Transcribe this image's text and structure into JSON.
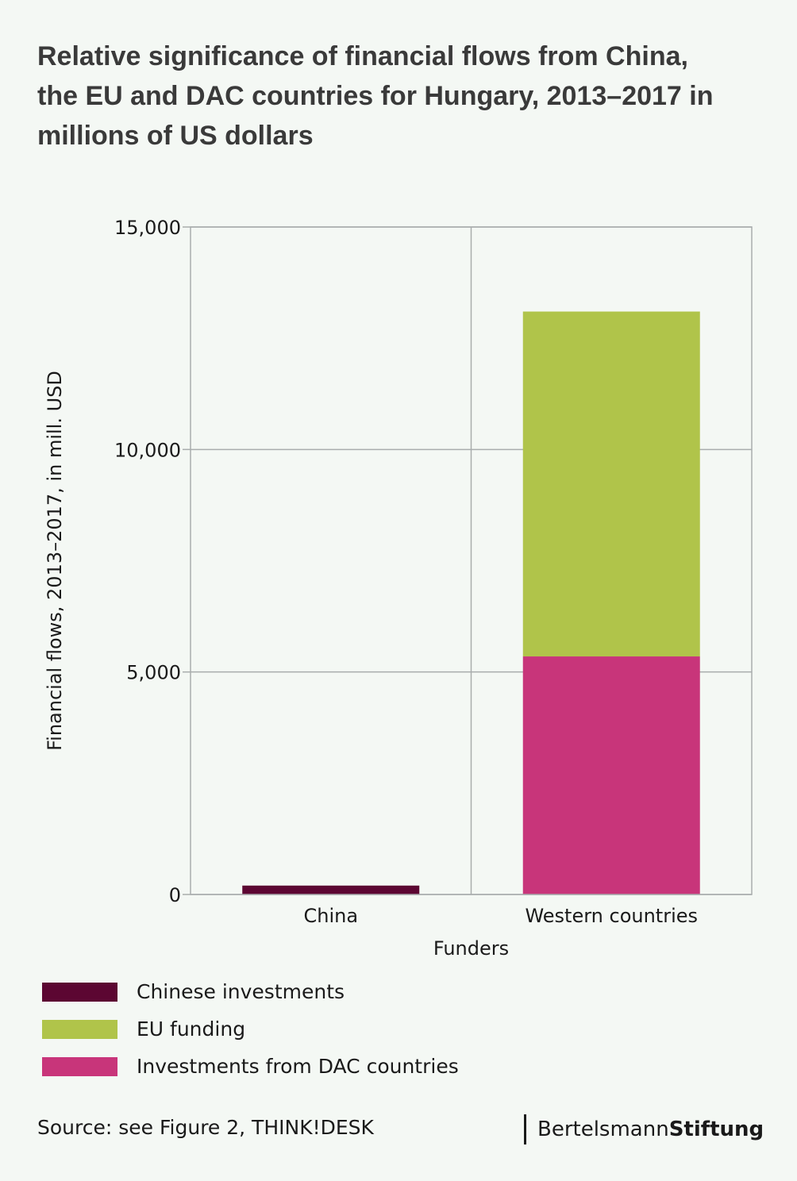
{
  "title_lines": [
    "Relative significance of financial flows from China,",
    "the EU and DAC countries for Hungary, 2013–2017 in",
    "millions of US dollars"
  ],
  "chart_data": {
    "type": "bar",
    "stacked": true,
    "categories": [
      "China",
      "Western countries"
    ],
    "series": [
      {
        "name": "Chinese investments",
        "color": "#5c0632",
        "values": [
          200,
          0
        ]
      },
      {
        "name": "EU funding",
        "color": "#b0c44a",
        "values": [
          0,
          7750
        ]
      },
      {
        "name": "Investments from DAC countries",
        "color": "#c8357a",
        "values": [
          0,
          5350
        ]
      }
    ],
    "stack_order": [
      "Chinese investments",
      "Investments from DAC countries",
      "EU funding"
    ],
    "xlabel": "Funders",
    "ylabel": "Financial flows, 2013–2017, in mill. USD",
    "ylim": [
      0,
      15000
    ],
    "yticks": [
      0,
      5000,
      10000,
      15000
    ],
    "ytick_labels": [
      "0",
      "5,000",
      "10,000",
      "15,000"
    ],
    "grid": true,
    "legend_position": "bottom-left"
  },
  "legend": {
    "items": [
      {
        "label": "Chinese investments",
        "color": "#5c0632"
      },
      {
        "label": "EU funding",
        "color": "#b0c44a"
      },
      {
        "label": "Investments from DAC countries",
        "color": "#c8357a"
      }
    ]
  },
  "source": "Source: see Figure 2, THINK!DESK",
  "brand": {
    "part1": "Bertelsmann",
    "part2": "Stiftung"
  }
}
